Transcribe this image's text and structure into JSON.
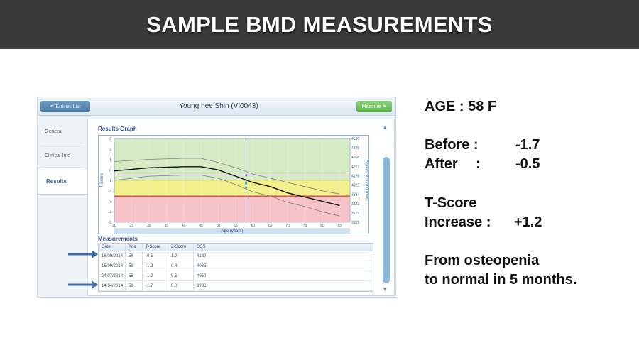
{
  "banner": {
    "title": "SAMPLE BMD MEASUREMENTS"
  },
  "window": {
    "title": "Young hee Shin (VI0043)",
    "back_button": "Patients List",
    "measure_button": "Measure"
  },
  "nav": {
    "items": [
      {
        "label": "General"
      },
      {
        "label": "Clinical Info"
      },
      {
        "label": "Results"
      }
    ],
    "active": "Results"
  },
  "results": {
    "graph_label": "Results Graph",
    "measurements_label": "Measurements"
  },
  "chart_data": {
    "type": "line",
    "xlabel": "Age (years)",
    "ylabel": "T-Score",
    "y2label": "Speed of sound (m/s)",
    "x_ticks": [
      20,
      25,
      30,
      35,
      40,
      45,
      50,
      55,
      60,
      65,
      70,
      75,
      80,
      85
    ],
    "y_ticks": [
      3,
      2,
      1,
      0,
      -1,
      -2,
      -3,
      -4,
      -5
    ],
    "y2_ticks": [
      4530,
      4429,
      4328,
      4227,
      4126,
      4025,
      3924,
      3823,
      3722,
      3621
    ],
    "xlim": [
      20,
      88
    ],
    "ylim": [
      -5,
      3
    ],
    "zones": [
      {
        "name": "normal",
        "from": -1,
        "to": 3,
        "color": "#d5ebc4"
      },
      {
        "name": "osteopenia",
        "from": -2.5,
        "to": -1,
        "color": "#f3ef8d"
      },
      {
        "name": "osteoporosis",
        "from": -5,
        "to": -2.5,
        "color": "#f6c3c8"
      }
    ],
    "reference_age": 58,
    "series": [
      {
        "values": [
          [
            20,
            0.8
          ],
          [
            30,
            1.0
          ],
          [
            40,
            1.1
          ],
          [
            45,
            1.1
          ],
          [
            50,
            0.7
          ],
          [
            55,
            0.2
          ],
          [
            60,
            -0.4
          ],
          [
            65,
            -0.8
          ],
          [
            70,
            -1.2
          ],
          [
            75,
            -1.6
          ],
          [
            80,
            -2.0
          ],
          [
            85,
            -2.3
          ]
        ],
        "color": "#808080"
      },
      {
        "values": [
          [
            20,
            -0.1
          ],
          [
            30,
            0.2
          ],
          [
            40,
            0.3
          ],
          [
            45,
            0.3
          ],
          [
            50,
            0.0
          ],
          [
            55,
            -0.6
          ],
          [
            60,
            -1.2
          ],
          [
            65,
            -1.6
          ],
          [
            70,
            -2.2
          ],
          [
            75,
            -2.6
          ],
          [
            80,
            -3.0
          ],
          [
            85,
            -3.4
          ]
        ],
        "color": "#111111"
      },
      {
        "values": [
          [
            20,
            -1.0
          ],
          [
            30,
            -0.6
          ],
          [
            40,
            -0.5
          ],
          [
            45,
            -0.5
          ],
          [
            50,
            -0.8
          ],
          [
            55,
            -1.4
          ],
          [
            60,
            -2.1
          ],
          [
            65,
            -2.5
          ],
          [
            70,
            -3.1
          ],
          [
            75,
            -3.5
          ],
          [
            80,
            -4.0
          ],
          [
            85,
            -4.4
          ]
        ],
        "color": "#808080"
      }
    ],
    "points": [
      {
        "age": 58,
        "tscore": -0.5,
        "color": "#c07ad6"
      },
      {
        "age": 58,
        "tscore": -1.3,
        "color": "#4fb3c9"
      },
      {
        "age": 58,
        "tscore": -1.2,
        "color": "#4fb3c9"
      },
      {
        "age": 58,
        "tscore": -1.7,
        "color": "#4fb3c9"
      }
    ]
  },
  "measurements": {
    "columns": [
      "Date",
      "Age",
      "T-Score",
      "Z-Score",
      "SOS"
    ],
    "rows": [
      [
        "16/09/2014",
        "58",
        "-0.5",
        "1.2",
        "4132"
      ],
      [
        "16/09/2014",
        "58",
        "-1.3",
        "0.4",
        "4035"
      ],
      [
        "24/07/2014",
        "58",
        "-1.2",
        "9.5",
        "4050"
      ],
      [
        "14/04/2014",
        "58",
        "-1.7",
        "0.0",
        "3996"
      ]
    ]
  },
  "info": {
    "age_line": "AGE : 58 F",
    "before_label": "Before :",
    "before_value": "-1.7",
    "after_label": "After",
    "after_colon": ":",
    "after_value": "-0.5",
    "tscore_label": "T-Score",
    "increase_label": "Increase :",
    "increase_value": "+1.2",
    "summary_line1": "From osteopenia",
    "summary_line2": "to normal in 5 months."
  },
  "colors": {
    "banner_bg": "#3a3a3a",
    "accent": "#3c6fa3",
    "arrow": "#3e6ea5"
  }
}
